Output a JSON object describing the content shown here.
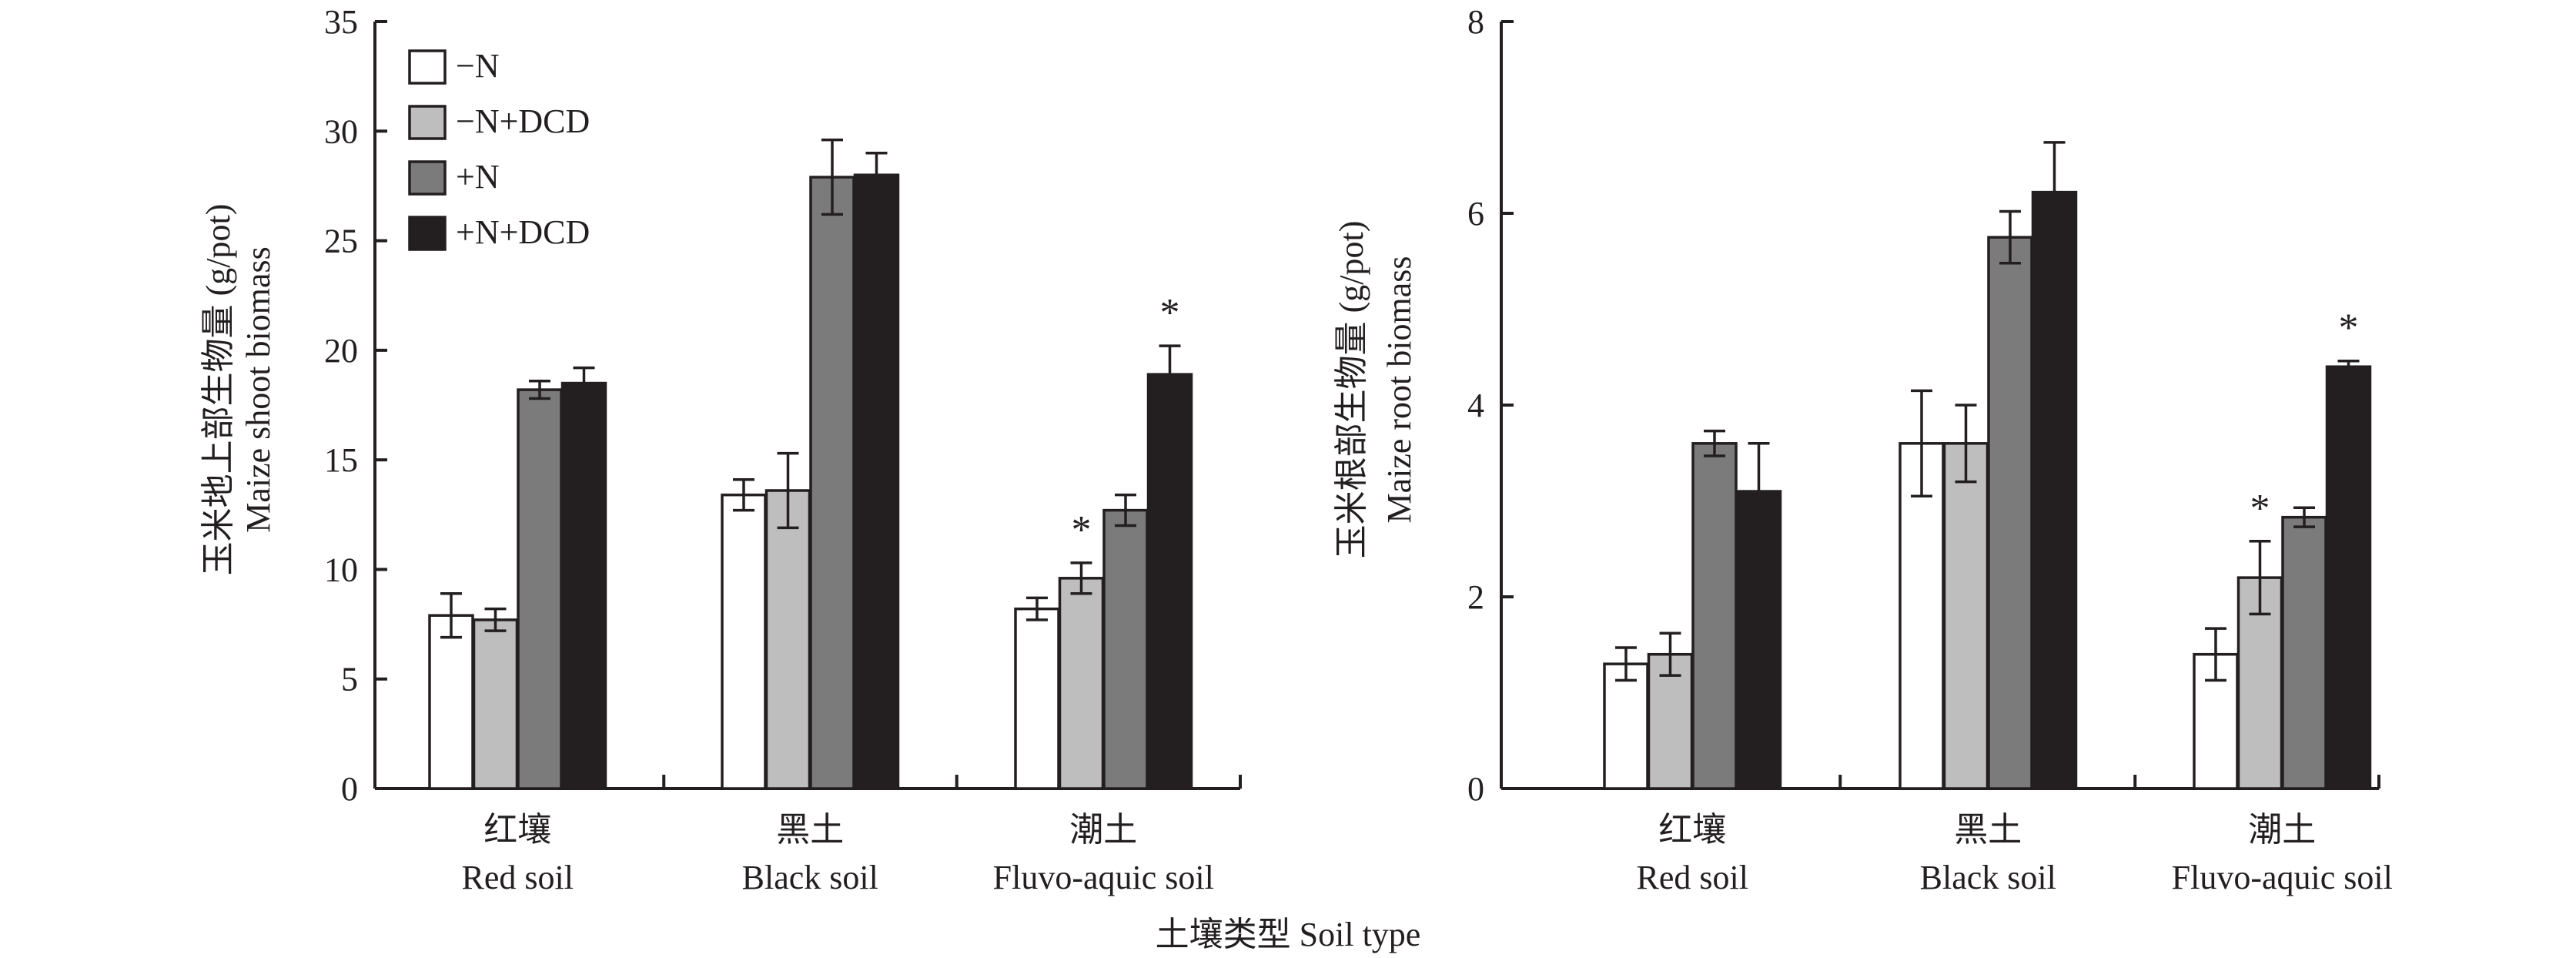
{
  "colors": {
    "axis": "#231f20",
    "minus_n": "#ffffff",
    "minus_n_dcd": "#bebebe",
    "plus_n": "#7b7b7b",
    "plus_n_dcd": "#231f20"
  },
  "legend": [
    "−N",
    "−N+DCD",
    "+N",
    "+N+DCD"
  ],
  "xlabel": "土壤类型 Soil type",
  "categories": [
    {
      "zh": "红壤",
      "en": "Red soil"
    },
    {
      "zh": "黑土",
      "en": "Black soil"
    },
    {
      "zh": "潮土",
      "en": "Fluvo-aquic soil"
    }
  ],
  "chart_data": [
    {
      "type": "bar",
      "ylabel_zh": "玉米地上部生物量 (g/pot)",
      "ylabel_en": "Maize shoot biomass",
      "ylim": [
        0,
        35
      ],
      "yticks": [
        0,
        5,
        10,
        15,
        20,
        25,
        30,
        35
      ],
      "categories": [
        "Red soil",
        "Black soil",
        "Fluvo-aquic soil"
      ],
      "series": [
        {
          "name": "−N",
          "values": [
            7.9,
            13.4,
            8.2
          ],
          "errors": [
            1.0,
            0.7,
            0.5
          ],
          "stars": [
            false,
            false,
            false
          ]
        },
        {
          "name": "−N+DCD",
          "values": [
            7.7,
            13.6,
            9.6
          ],
          "errors": [
            0.5,
            1.7,
            0.7
          ],
          "stars": [
            false,
            false,
            true
          ]
        },
        {
          "name": "+N",
          "values": [
            18.2,
            27.9,
            12.7
          ],
          "errors": [
            0.4,
            1.7,
            0.7
          ],
          "stars": [
            false,
            false,
            false
          ]
        },
        {
          "name": "+N+DCD",
          "values": [
            18.5,
            28.0,
            18.9
          ],
          "errors": [
            0.7,
            1.0,
            1.3
          ],
          "stars": [
            false,
            false,
            true
          ]
        }
      ]
    },
    {
      "type": "bar",
      "ylabel_zh": "玉米根部生物量 (g/pot)",
      "ylabel_en": "Maize root biomass",
      "ylim": [
        0,
        8
      ],
      "yticks": [
        0,
        2,
        4,
        6,
        8
      ],
      "categories": [
        "Red soil",
        "Black soil",
        "Fluvo-aquic soil"
      ],
      "series": [
        {
          "name": "−N",
          "values": [
            1.3,
            3.6,
            1.4
          ],
          "errors": [
            0.17,
            0.55,
            0.27
          ],
          "stars": [
            false,
            false,
            false
          ]
        },
        {
          "name": "−N+DCD",
          "values": [
            1.4,
            3.6,
            2.2
          ],
          "errors": [
            0.22,
            0.4,
            0.38
          ],
          "stars": [
            false,
            false,
            true
          ]
        },
        {
          "name": "+N",
          "values": [
            3.6,
            5.75,
            2.83
          ],
          "errors": [
            0.13,
            0.27,
            0.1
          ],
          "stars": [
            false,
            false,
            false
          ]
        },
        {
          "name": "+N+DCD",
          "values": [
            3.1,
            6.22,
            4.4
          ],
          "errors": [
            0.5,
            0.52,
            0.06
          ],
          "stars": [
            false,
            false,
            true
          ]
        }
      ]
    }
  ]
}
